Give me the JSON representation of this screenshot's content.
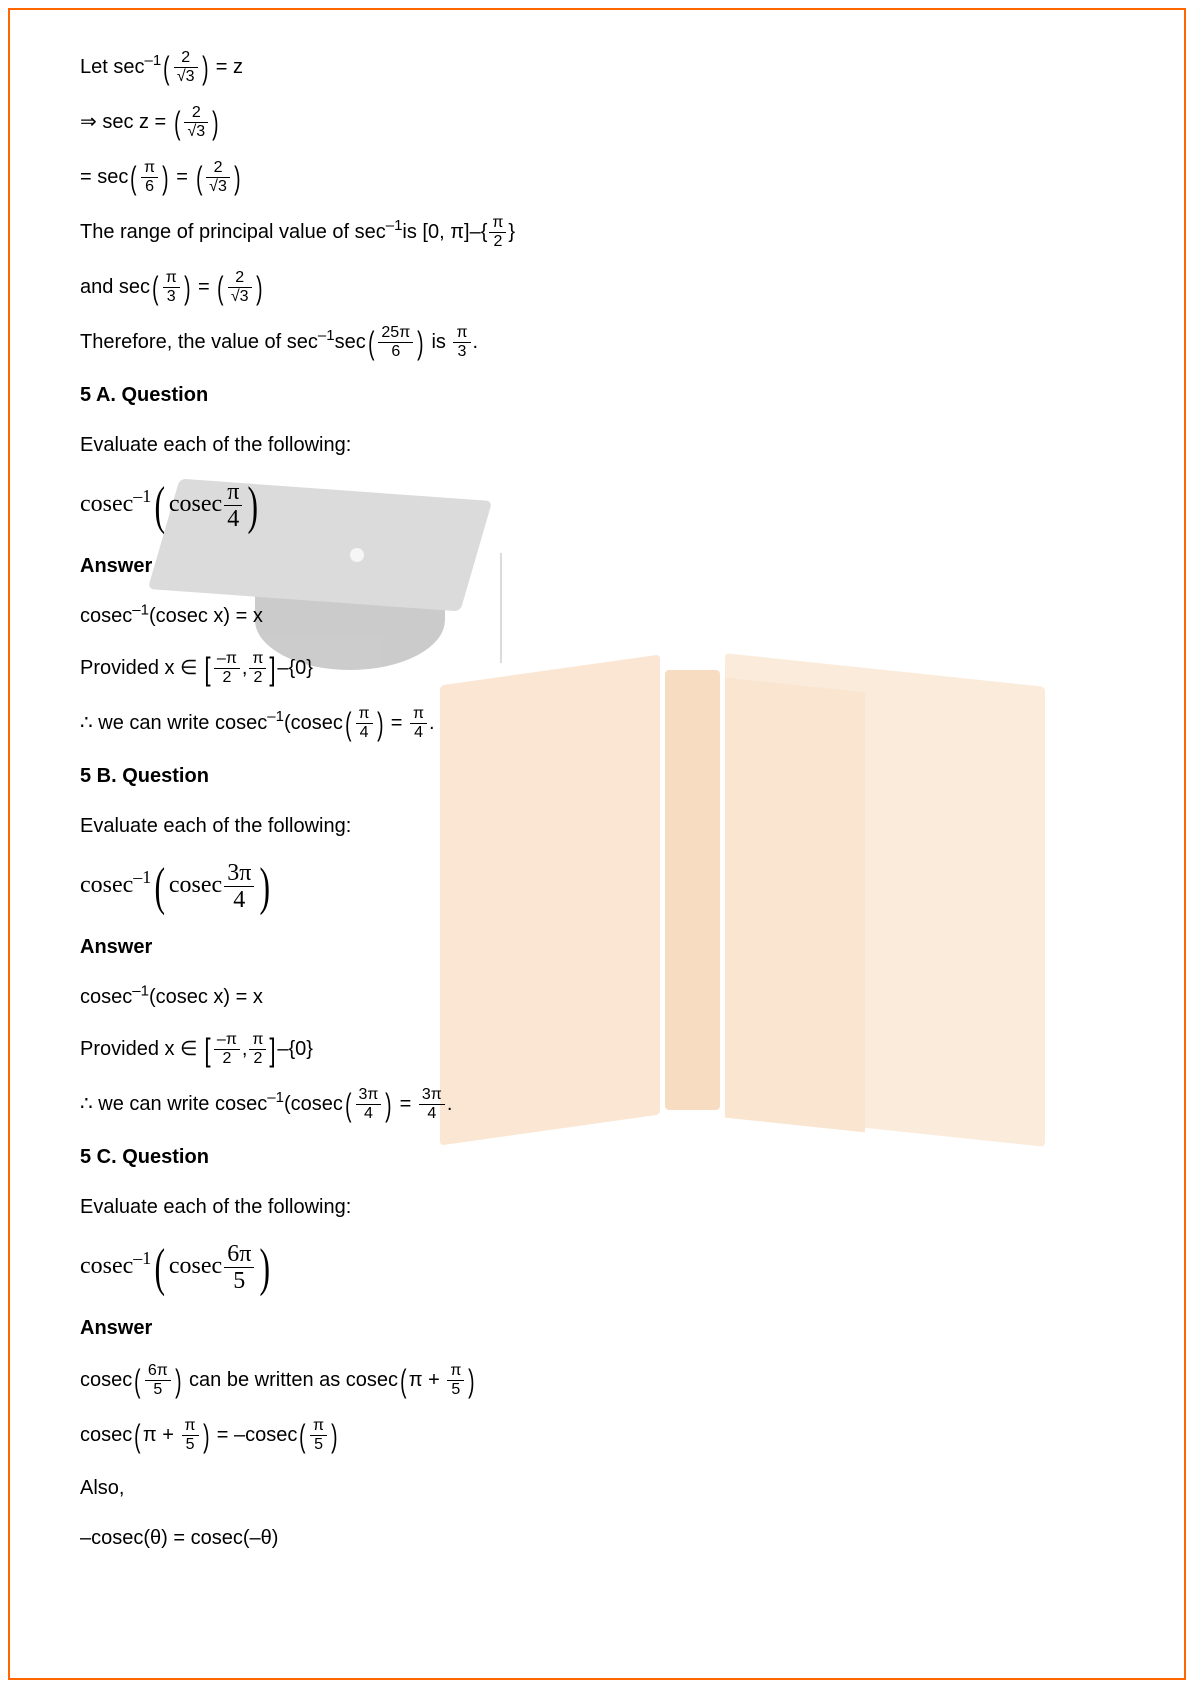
{
  "line1_a": "Let sec",
  "line1_b": " = z",
  "line2_a": "⇒ sec z = ",
  "line3_a": "= sec",
  "line3_b": " = ",
  "line4_a": "The range of principal value of sec",
  "line4_b": "is [0, π]–{",
  "line4_c": "}",
  "line5_a": "and sec",
  "line5_b": " = ",
  "line6_a": "Therefore, the value of sec",
  "line6_b": "sec",
  "line6_c": " is ",
  "line6_d": ".",
  "q5a_title": "5 A. Question",
  "eval_text": "Evaluate each of the following:",
  "cosec_inv": "cosec",
  "cosec_plain": "cosec",
  "answer_title": "Answer",
  "ans_line1": "(cosec x) = x",
  "provided_a": "Provided x ∈ ",
  "provided_b": "–{0}",
  "therefore_a": "∴ we can write cosec",
  "therefore_b": "(cosec",
  "therefore_c": " = ",
  "therefore_d": ".",
  "q5b_title": "5 B. Question",
  "q5c_title": "5 C. Question",
  "c_line1_a": "cosec",
  "c_line1_b": " can be written as cosec",
  "c_line2_a": "cosec",
  "c_line2_b": " = –cosec",
  "also_text": "Also,",
  "c_line3": "–cosec(θ) = cosec(–θ)",
  "sup_neg1": "–1",
  "frac_2_sqrt3_num": "2",
  "frac_2_sqrt3_den": "3",
  "frac_pi_6_num": "π",
  "frac_pi_6_den": "6",
  "frac_pi_2_num": "π",
  "frac_pi_2_den": "2",
  "frac_pi_3_num": "π",
  "frac_pi_3_den": "3",
  "frac_25pi_6_num": "25π",
  "frac_25pi_6_den": "6",
  "frac_pi_4_num": "π",
  "frac_pi_4_den": "4",
  "frac_negpi_2_num": "–π",
  "frac_negpi_2_den": "2",
  "frac_3pi_4_num": "3π",
  "frac_3pi_4_den": "4",
  "frac_6pi_5_num": "6π",
  "frac_6pi_5_den": "5",
  "frac_pi_5_num": "π",
  "frac_pi_5_den": "5",
  "pi_plus": "π + "
}
